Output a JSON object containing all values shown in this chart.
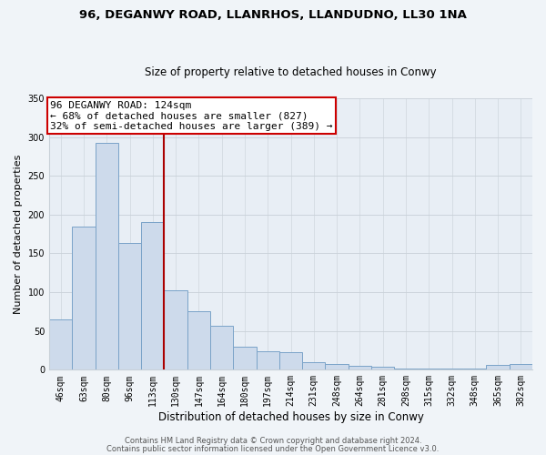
{
  "title": "96, DEGANWY ROAD, LLANRHOS, LLANDUDNO, LL30 1NA",
  "subtitle": "Size of property relative to detached houses in Conwy",
  "xlabel": "Distribution of detached houses by size in Conwy",
  "ylabel": "Number of detached properties",
  "bar_labels": [
    "46sqm",
    "63sqm",
    "80sqm",
    "96sqm",
    "113sqm",
    "130sqm",
    "147sqm",
    "164sqm",
    "180sqm",
    "197sqm",
    "214sqm",
    "231sqm",
    "248sqm",
    "264sqm",
    "281sqm",
    "298sqm",
    "315sqm",
    "332sqm",
    "348sqm",
    "365sqm",
    "382sqm"
  ],
  "bar_values": [
    65,
    185,
    293,
    163,
    190,
    103,
    76,
    57,
    30,
    24,
    23,
    10,
    8,
    5,
    4,
    2,
    2,
    1,
    1,
    6,
    7
  ],
  "bar_color": "#cddaeb",
  "bar_edge_color": "#7aa3c8",
  "vline_x": 4.5,
  "vline_color": "#aa0000",
  "annotation_line1": "96 DEGANWY ROAD: 124sqm",
  "annotation_line2": "← 68% of detached houses are smaller (827)",
  "annotation_line3": "32% of semi-detached houses are larger (389) →",
  "annotation_box_facecolor": "white",
  "annotation_box_edgecolor": "#cc0000",
  "ylim": [
    0,
    350
  ],
  "yticks": [
    0,
    50,
    100,
    150,
    200,
    250,
    300,
    350
  ],
  "footer1": "Contains HM Land Registry data © Crown copyright and database right 2024.",
  "footer2": "Contains public sector information licensed under the Open Government Licence v3.0.",
  "bg_color": "#f0f4f8",
  "plot_bg_color": "#e8eef5",
  "grid_color": "#c8d0d8",
  "title_fontsize": 9.5,
  "subtitle_fontsize": 8.5,
  "ylabel_fontsize": 8,
  "xlabel_fontsize": 8.5,
  "tick_fontsize": 7,
  "annotation_fontsize": 8,
  "footer_fontsize": 6
}
